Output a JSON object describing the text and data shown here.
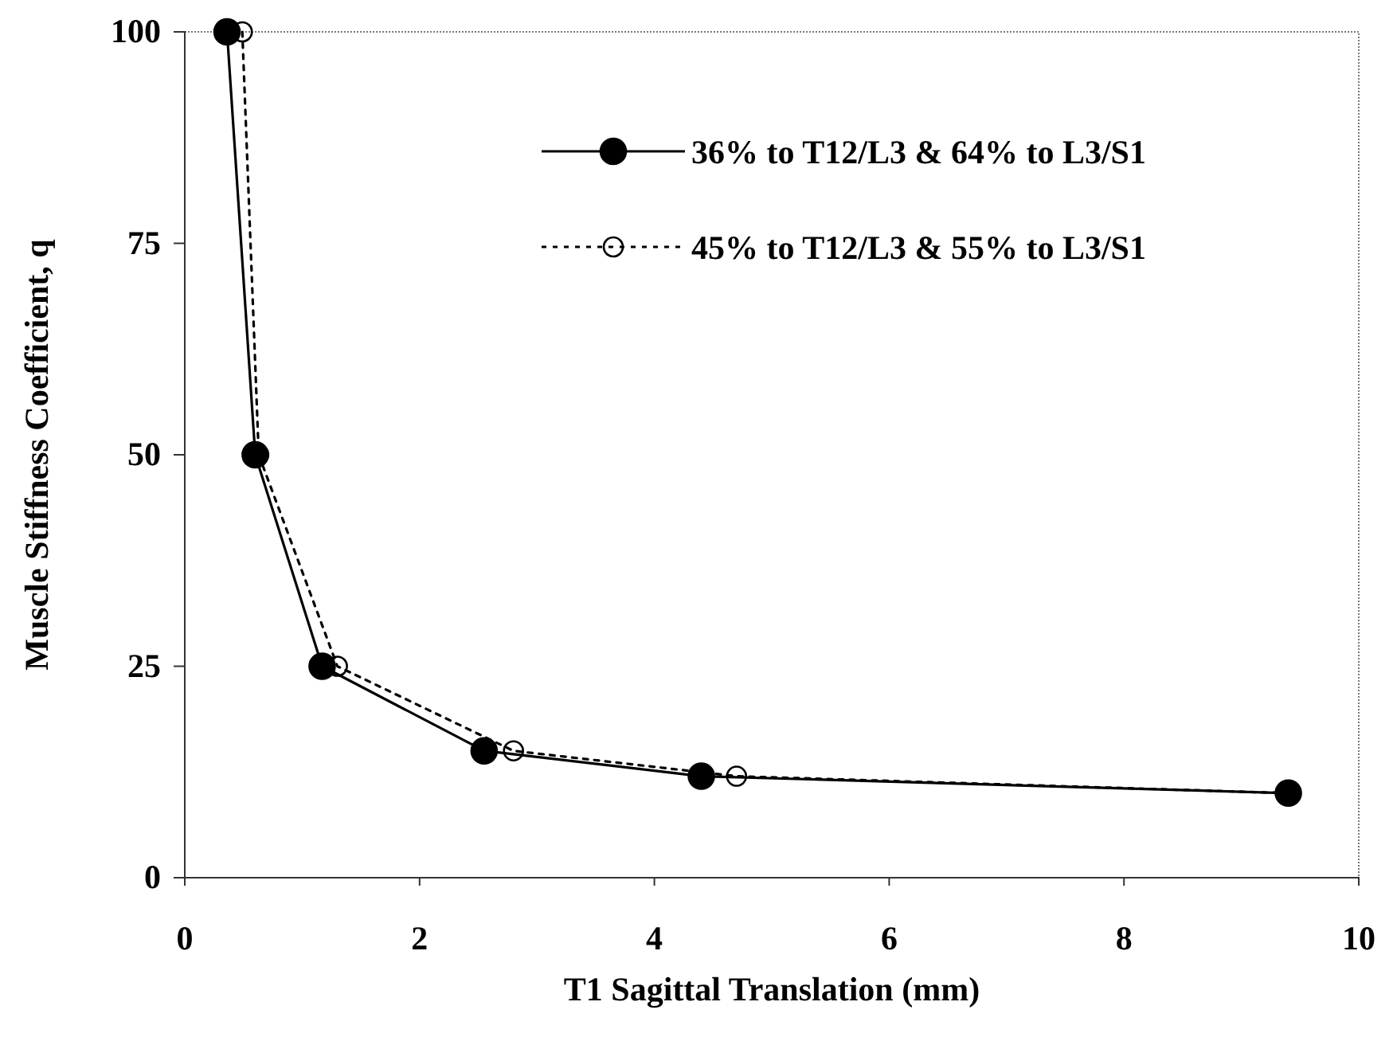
{
  "chart_data": {
    "type": "line",
    "xlabel": "T1 Sagittal Translation (mm)",
    "ylabel": "Muscle Stiffness Coefficient, q",
    "xlim": [
      0,
      10
    ],
    "xticks": [
      0,
      2,
      4,
      6,
      8,
      10
    ],
    "ylim": [
      0,
      100
    ],
    "yticks": [
      0,
      25,
      50,
      75,
      100
    ],
    "grid": false,
    "legend": "top right",
    "series": [
      {
        "name": "36% to T12/L3 & 64% to L3/S1",
        "color": "#000000",
        "marker": "circle",
        "line_style": "solid",
        "x": [
          0.36,
          0.6,
          1.17,
          2.55,
          4.4,
          9.4
        ],
        "values": [
          100,
          50,
          25,
          15,
          12,
          10
        ]
      },
      {
        "name": "45% to T12/L3 & 55% to L3/S1",
        "color": "#000000",
        "marker": "circle",
        "line_style": "dotted",
        "x": [
          0.49,
          0.63,
          1.3,
          2.8,
          4.7,
          9.4
        ],
        "values": [
          100,
          50,
          25,
          15,
          12,
          10
        ]
      }
    ]
  }
}
